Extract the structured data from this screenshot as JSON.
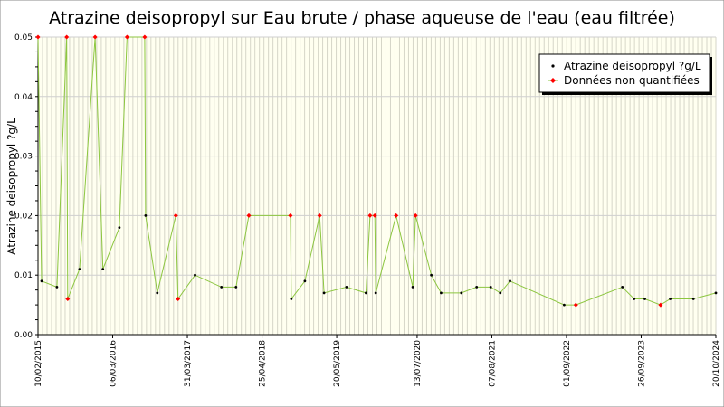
{
  "chart_data": {
    "type": "line",
    "title": "Atrazine deisopropyl sur Eau brute / phase aqueuse de l'eau (eau filtrée)",
    "ylabel": "Atrazine deisopropyl ?g/L",
    "xlabel": "",
    "ylim": [
      0,
      0.05
    ],
    "y_ticks": [
      "0.00",
      "0.01",
      "0.02",
      "0.03",
      "0.04",
      "0.05"
    ],
    "xlim": [
      "2015-02-10",
      "2024-10-20"
    ],
    "x_ticks": [
      "10/02/2015",
      "06/03/2016",
      "31/03/2017",
      "25/04/2018",
      "20/05/2019",
      "13/07/2020",
      "07/08/2021",
      "01/09/2022",
      "26/09/2023",
      "20/10/2024"
    ],
    "x_tick_dates": [
      "2015-02-10",
      "2016-03-06",
      "2017-03-31",
      "2018-04-25",
      "2019-05-20",
      "2020-07-13",
      "2021-08-07",
      "2022-09-01",
      "2023-09-26",
      "2024-10-20"
    ],
    "grid": true,
    "legend_position": "top-right",
    "line_color": "#8cc63f",
    "series": [
      {
        "name": "Atrazine deisopropyl ?g/L",
        "color": "#000000",
        "points": [
          {
            "date": "2015-02-10",
            "value": 0.05,
            "quantified": false
          },
          {
            "date": "2015-03-01",
            "value": 0.009,
            "quantified": true
          },
          {
            "date": "2015-05-20",
            "value": 0.008,
            "quantified": true
          },
          {
            "date": "2015-07-10",
            "value": 0.05,
            "quantified": false
          },
          {
            "date": "2015-07-15",
            "value": 0.006,
            "quantified": false
          },
          {
            "date": "2015-09-15",
            "value": 0.011,
            "quantified": true
          },
          {
            "date": "2015-12-05",
            "value": 0.05,
            "quantified": false
          },
          {
            "date": "2016-01-15",
            "value": 0.011,
            "quantified": true
          },
          {
            "date": "2016-04-10",
            "value": 0.018,
            "quantified": true
          },
          {
            "date": "2016-05-20",
            "value": 0.05,
            "quantified": false
          },
          {
            "date": "2016-08-20",
            "value": 0.05,
            "quantified": false
          },
          {
            "date": "2016-08-25",
            "value": 0.02,
            "quantified": true
          },
          {
            "date": "2016-10-25",
            "value": 0.007,
            "quantified": true
          },
          {
            "date": "2017-01-30",
            "value": 0.02,
            "quantified": false
          },
          {
            "date": "2017-02-10",
            "value": 0.006,
            "quantified": false
          },
          {
            "date": "2017-05-10",
            "value": 0.01,
            "quantified": true
          },
          {
            "date": "2017-09-25",
            "value": 0.008,
            "quantified": true
          },
          {
            "date": "2017-12-10",
            "value": 0.008,
            "quantified": true
          },
          {
            "date": "2018-02-15",
            "value": 0.02,
            "quantified": false
          },
          {
            "date": "2018-09-20",
            "value": 0.02,
            "quantified": false
          },
          {
            "date": "2018-09-25",
            "value": 0.006,
            "quantified": true
          },
          {
            "date": "2018-12-05",
            "value": 0.009,
            "quantified": true
          },
          {
            "date": "2019-02-20",
            "value": 0.02,
            "quantified": false
          },
          {
            "date": "2019-03-15",
            "value": 0.007,
            "quantified": true
          },
          {
            "date": "2019-07-10",
            "value": 0.008,
            "quantified": true
          },
          {
            "date": "2019-10-20",
            "value": 0.007,
            "quantified": true
          },
          {
            "date": "2019-11-10",
            "value": 0.02,
            "quantified": false
          },
          {
            "date": "2019-12-05",
            "value": 0.02,
            "quantified": false
          },
          {
            "date": "2019-12-10",
            "value": 0.007,
            "quantified": true
          },
          {
            "date": "2020-03-25",
            "value": 0.02,
            "quantified": false
          },
          {
            "date": "2020-06-20",
            "value": 0.008,
            "quantified": true
          },
          {
            "date": "2020-07-05",
            "value": 0.02,
            "quantified": false
          },
          {
            "date": "2020-09-25",
            "value": 0.01,
            "quantified": true
          },
          {
            "date": "2020-11-15",
            "value": 0.007,
            "quantified": true
          },
          {
            "date": "2021-03-01",
            "value": 0.007,
            "quantified": true
          },
          {
            "date": "2021-05-20",
            "value": 0.008,
            "quantified": true
          },
          {
            "date": "2021-08-01",
            "value": 0.008,
            "quantified": true
          },
          {
            "date": "2021-09-20",
            "value": 0.007,
            "quantified": true
          },
          {
            "date": "2021-11-10",
            "value": 0.009,
            "quantified": true
          },
          {
            "date": "2022-08-20",
            "value": 0.005,
            "quantified": true
          },
          {
            "date": "2022-10-20",
            "value": 0.005,
            "quantified": false
          },
          {
            "date": "2023-06-20",
            "value": 0.008,
            "quantified": true
          },
          {
            "date": "2023-08-20",
            "value": 0.006,
            "quantified": true
          },
          {
            "date": "2023-10-15",
            "value": 0.006,
            "quantified": true
          },
          {
            "date": "2024-01-05",
            "value": 0.005,
            "quantified": false
          },
          {
            "date": "2024-02-25",
            "value": 0.006,
            "quantified": true
          },
          {
            "date": "2024-06-25",
            "value": 0.006,
            "quantified": true
          },
          {
            "date": "2024-10-20",
            "value": 0.007,
            "quantified": true
          }
        ]
      },
      {
        "name": "Données non quantifiées",
        "color": "#ff0000"
      }
    ]
  }
}
